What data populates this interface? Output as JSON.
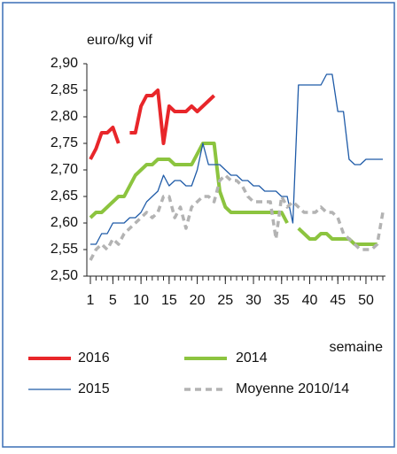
{
  "chart_data": {
    "type": "line",
    "y_label": "euro/kg vif",
    "x_label": "semaine",
    "x": [
      1,
      2,
      3,
      4,
      5,
      6,
      7,
      8,
      9,
      10,
      11,
      12,
      13,
      14,
      15,
      16,
      17,
      18,
      19,
      20,
      21,
      22,
      23,
      24,
      25,
      26,
      27,
      28,
      29,
      30,
      31,
      32,
      33,
      34,
      35,
      36,
      37,
      38,
      39,
      40,
      41,
      42,
      43,
      44,
      45,
      46,
      47,
      48,
      49,
      50,
      51,
      52,
      53
    ],
    "xlim": [
      1,
      53
    ],
    "xticks": [
      1,
      5,
      10,
      15,
      20,
      25,
      30,
      35,
      40,
      45,
      50
    ],
    "ylim": [
      2.5,
      2.9
    ],
    "yticks": [
      {
        "value": 2.5,
        "label": "2,50"
      },
      {
        "value": 2.55,
        "label": "2,55"
      },
      {
        "value": 2.6,
        "label": "2,60"
      },
      {
        "value": 2.65,
        "label": "2,65"
      },
      {
        "value": 2.7,
        "label": "2,70"
      },
      {
        "value": 2.75,
        "label": "2,75"
      },
      {
        "value": 2.8,
        "label": "2,80"
      },
      {
        "value": 2.85,
        "label": "2,85"
      },
      {
        "value": 2.9,
        "label": "2,90"
      }
    ],
    "grid": false,
    "legend": "bottom",
    "series": [
      {
        "name": "2016",
        "color": "#e8262a",
        "width": 4,
        "dash": false,
        "values": [
          2.72,
          2.74,
          2.77,
          2.77,
          2.78,
          2.75,
          null,
          2.77,
          2.77,
          2.82,
          2.84,
          2.84,
          2.85,
          2.75,
          2.82,
          2.81,
          2.81,
          2.81,
          2.82,
          2.81,
          2.82,
          2.83,
          2.84,
          null,
          null,
          null,
          null,
          null,
          null,
          null,
          null,
          null,
          null,
          null,
          null,
          null,
          null,
          null,
          null,
          null,
          null,
          null,
          null,
          null,
          null,
          null,
          null,
          null,
          null,
          null,
          null,
          null,
          null
        ]
      },
      {
        "name": "2014",
        "color": "#8cc43f",
        "width": 4,
        "dash": false,
        "values": [
          2.61,
          2.62,
          2.62,
          2.63,
          2.64,
          2.65,
          2.65,
          2.67,
          2.69,
          2.7,
          2.71,
          2.71,
          2.72,
          2.72,
          2.72,
          2.71,
          2.71,
          2.71,
          2.71,
          2.73,
          2.75,
          2.75,
          2.75,
          2.66,
          2.63,
          2.62,
          2.62,
          2.62,
          2.62,
          2.62,
          2.62,
          2.62,
          2.62,
          2.62,
          2.62,
          2.6,
          null,
          2.59,
          2.58,
          2.57,
          2.57,
          2.58,
          2.58,
          2.57,
          2.57,
          2.57,
          2.57,
          2.56,
          2.56,
          2.56,
          2.56,
          2.56,
          null
        ]
      },
      {
        "name": "2015",
        "color": "#1f5ba8",
        "width": 1.3,
        "dash": false,
        "values": [
          2.56,
          2.56,
          2.58,
          2.58,
          2.6,
          2.6,
          2.6,
          2.61,
          2.61,
          2.62,
          2.64,
          2.65,
          2.66,
          2.69,
          2.67,
          2.68,
          2.68,
          2.67,
          2.67,
          2.7,
          2.75,
          2.71,
          2.71,
          2.71,
          2.7,
          2.69,
          2.69,
          2.68,
          2.68,
          2.67,
          2.67,
          2.66,
          2.66,
          2.66,
          2.65,
          2.65,
          2.6,
          2.86,
          2.86,
          2.86,
          2.86,
          2.86,
          2.88,
          2.88,
          2.81,
          2.81,
          2.72,
          2.71,
          2.71,
          2.72,
          2.72,
          2.72,
          2.72
        ]
      },
      {
        "name": "Moyenne 2010/14",
        "color": "#b3b3b3",
        "width": 3.5,
        "dash": true,
        "values": [
          2.53,
          2.55,
          2.56,
          2.55,
          2.57,
          2.56,
          2.58,
          2.59,
          2.6,
          2.61,
          2.62,
          2.61,
          2.62,
          2.65,
          2.65,
          2.61,
          2.63,
          2.59,
          2.63,
          2.64,
          2.65,
          2.65,
          2.64,
          2.68,
          2.69,
          2.68,
          2.68,
          2.67,
          2.65,
          2.64,
          2.64,
          2.64,
          2.64,
          2.57,
          2.65,
          2.63,
          2.64,
          2.63,
          2.62,
          2.62,
          2.62,
          2.63,
          2.62,
          2.62,
          2.61,
          2.58,
          2.57,
          2.56,
          2.55,
          2.55,
          2.55,
          2.56,
          2.62
        ]
      }
    ]
  }
}
